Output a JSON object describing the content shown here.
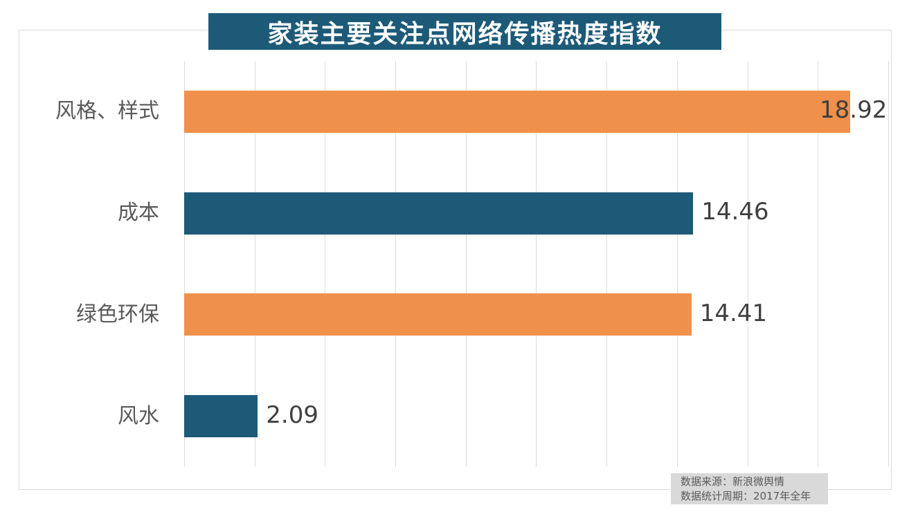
{
  "title": {
    "text": "家装主要关注点网络传播热度指数"
  },
  "chart_data": {
    "type": "bar",
    "orientation": "horizontal",
    "title": "家装主要关注点网络传播热度指数",
    "categories": [
      "风格、样式",
      "成本",
      "绿色环保",
      "风水"
    ],
    "values": [
      18.92,
      14.46,
      14.41,
      2.09
    ],
    "value_labels": [
      "18.92",
      "14.46",
      "14.41",
      "2.09"
    ],
    "bar_colors": [
      "#EF904C",
      "#1D5A78",
      "#EF904C",
      "#1D5A78"
    ],
    "xlim": [
      0,
      20.1
    ],
    "grid": true,
    "grid_step": 2,
    "legend": "none"
  },
  "footer": {
    "line1": "数据来源：新浪微舆情",
    "line2": "数据统计周期：2017年全年"
  },
  "colors": {
    "accent_orange": "#EF904C",
    "accent_teal": "#1D5A78",
    "grid": "#DCDCDC",
    "category_label": "#595959",
    "value_label": "#3F3F3F",
    "title_bg": "#1D5A78",
    "title_fg": "#FFFFFF",
    "footer_bg": "#D9D9D9",
    "footer_fg": "#595959"
  }
}
